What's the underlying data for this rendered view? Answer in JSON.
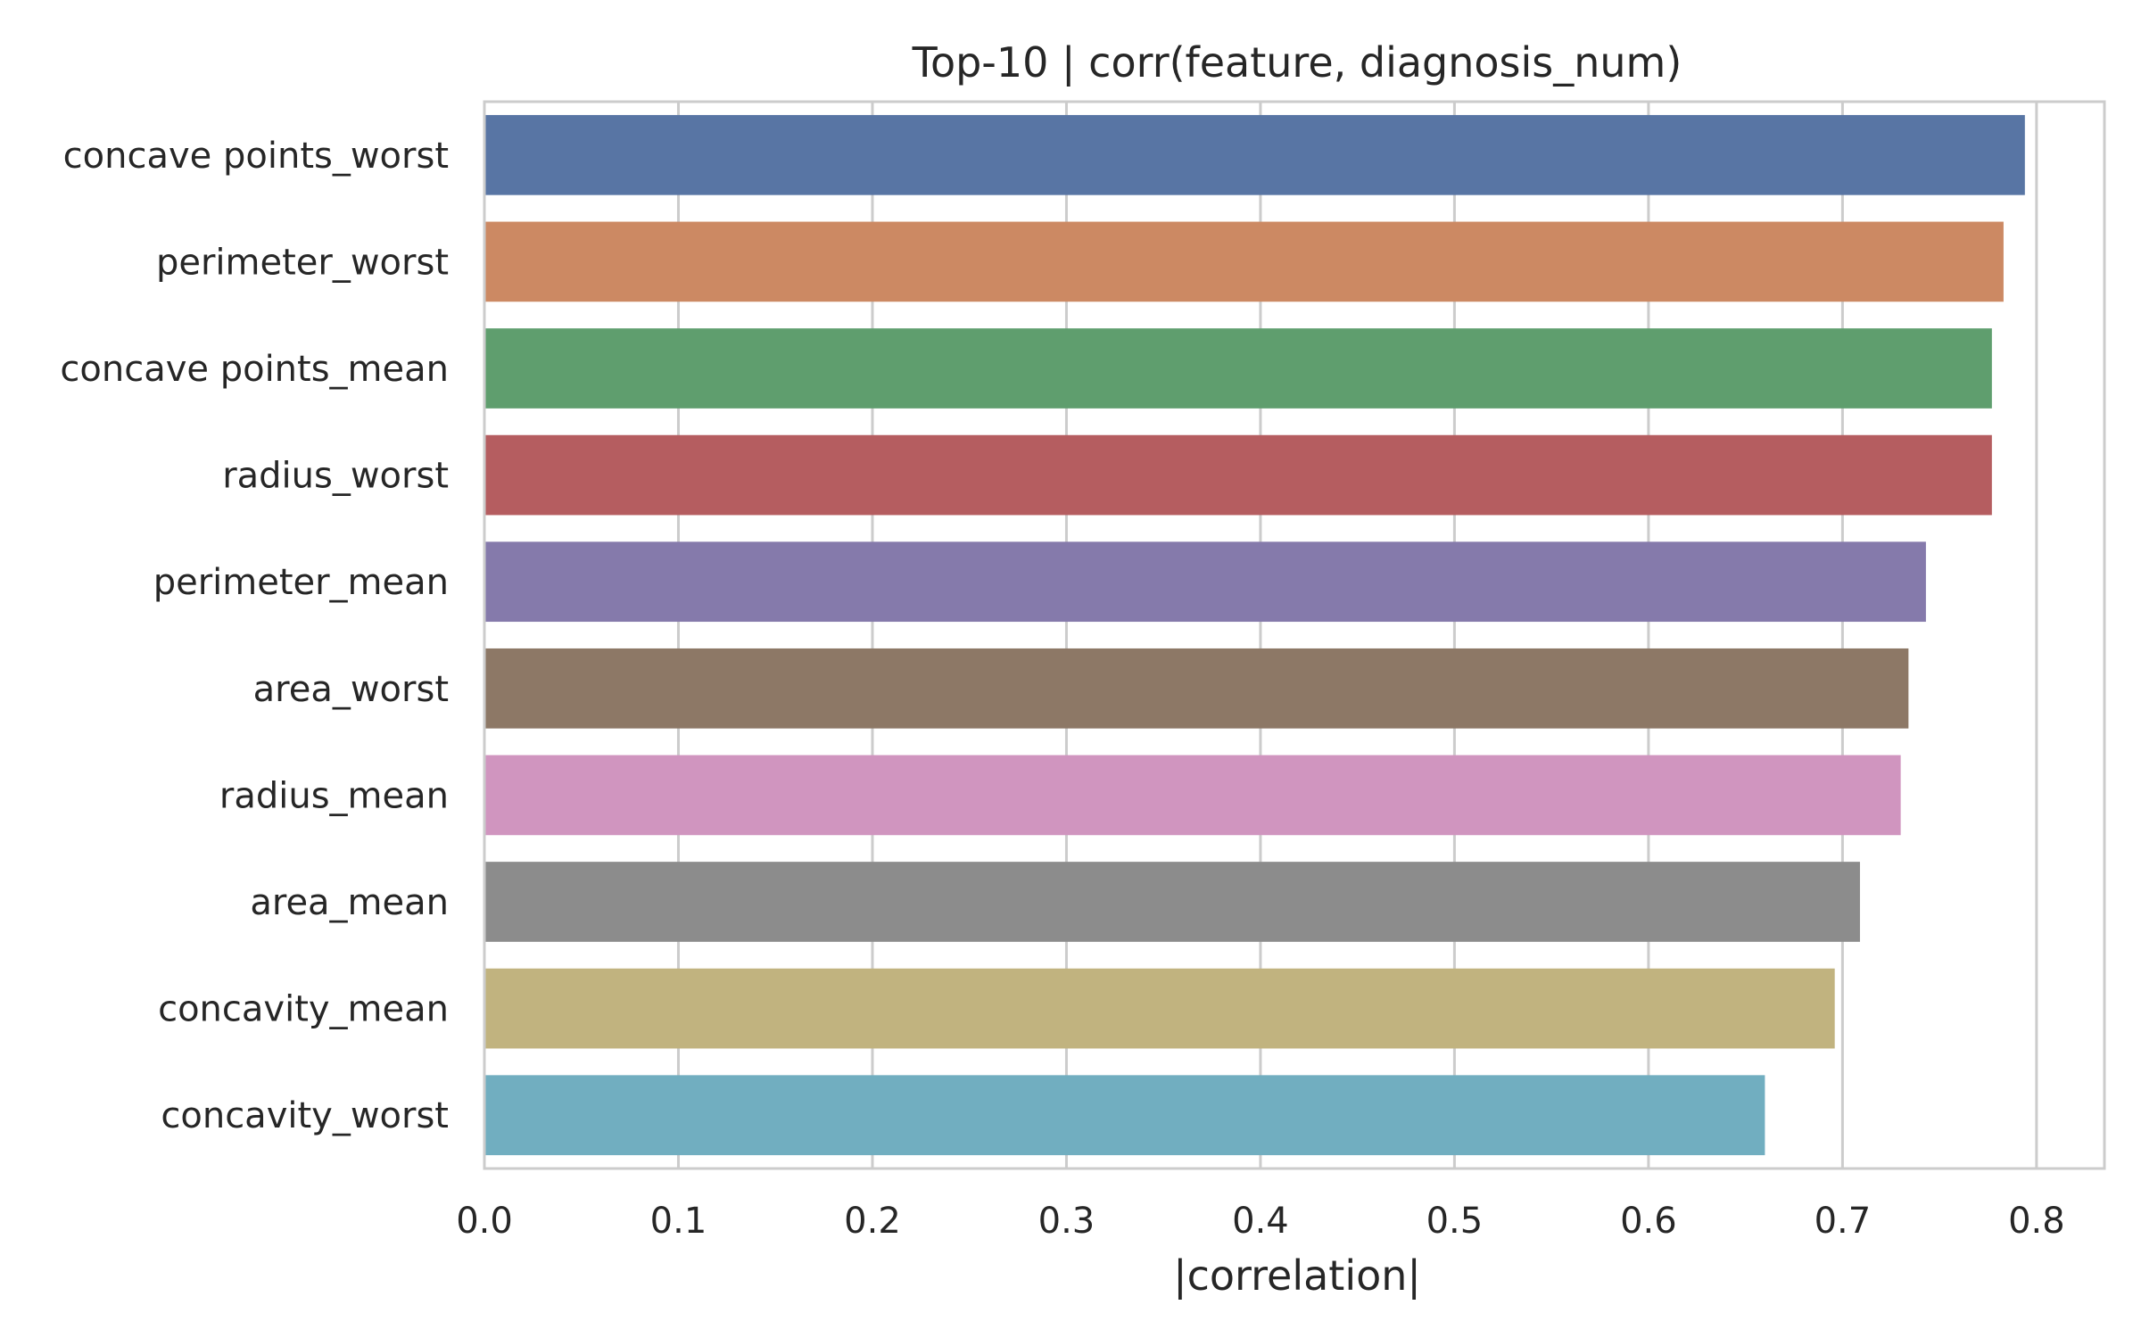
{
  "chart_data": {
    "type": "bar",
    "orientation": "horizontal",
    "title": "Top-10 | corr(feature, diagnosis_num)",
    "xlabel": "|correlation|",
    "ylabel": "",
    "categories": [
      "concave points_worst",
      "perimeter_worst",
      "concave points_mean",
      "radius_worst",
      "perimeter_mean",
      "area_worst",
      "radius_mean",
      "area_mean",
      "concavity_mean",
      "concavity_worst"
    ],
    "values": [
      0.794,
      0.783,
      0.777,
      0.777,
      0.743,
      0.734,
      0.73,
      0.709,
      0.696,
      0.66
    ],
    "colors": [
      "#5875a4",
      "#cc8963",
      "#5f9e6e",
      "#b55d60",
      "#857aab",
      "#8d7866",
      "#d095bf",
      "#8c8c8c",
      "#c1b37f",
      "#71aec0"
    ],
    "xlim": [
      0,
      0.835
    ],
    "xticks": [
      0.0,
      0.1,
      0.2,
      0.3,
      0.4,
      0.5,
      0.6,
      0.7,
      0.8
    ],
    "xtick_labels": [
      "0.0",
      "0.1",
      "0.2",
      "0.3",
      "0.4",
      "0.5",
      "0.6",
      "0.7",
      "0.8"
    ],
    "grid": "vertical",
    "style": "seaborn-whitegrid"
  }
}
